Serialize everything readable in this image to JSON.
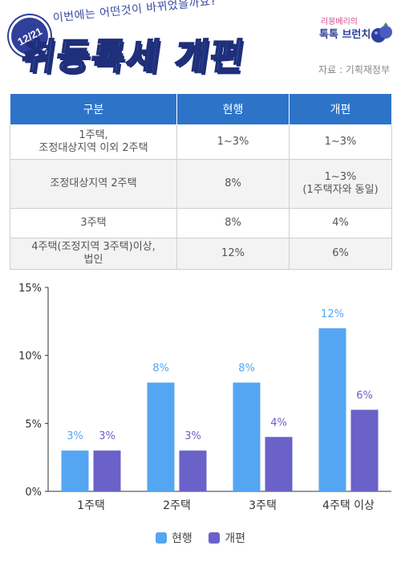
{
  "header": {
    "date_badge": "12/21",
    "subtitle": "이번에는 어떤것이 바뀌었을까요?",
    "title": "취등록세 개편",
    "logo_line1": "리몽베리의",
    "logo_line2": "톡톡 브런치",
    "source": "자료 : 기획재정부"
  },
  "table": {
    "headers": [
      "구분",
      "현행",
      "개편"
    ],
    "rows": [
      {
        "category": "1주택,\n조정대상지역 이외 2주택",
        "current": "1~3%",
        "revised": "1~3%"
      },
      {
        "category": "조정대상지역 2주택",
        "current": "8%",
        "revised": "1~3%\n(1주택자와 동일)"
      },
      {
        "category": "3주택",
        "current": "8%",
        "revised": "4%"
      },
      {
        "category": "4주택(조정지역 3주택)이상,\n법인",
        "current": "12%",
        "revised": "6%"
      }
    ]
  },
  "colors": {
    "current": "#55a6f2",
    "revised": "#6a61c9",
    "current_label": "#55a6f2",
    "revised_label": "#6a61c9",
    "table_header": "#2d74c9"
  },
  "chart_data": {
    "type": "bar",
    "categories": [
      "1주택",
      "2주택",
      "3주택",
      "4주택 이상"
    ],
    "series": [
      {
        "name": "현행",
        "values": [
          3,
          8,
          8,
          12
        ],
        "labels": [
          "3%",
          "8%",
          "8%",
          "12%"
        ]
      },
      {
        "name": "개편",
        "values": [
          3,
          3,
          4,
          6
        ],
        "labels": [
          "3%",
          "3%",
          "4%",
          "6%"
        ]
      }
    ],
    "yticks": [
      "0%",
      "5%",
      "10%",
      "15%"
    ],
    "ylim": [
      0,
      15
    ],
    "legend_position": "bottom",
    "grid": false
  }
}
